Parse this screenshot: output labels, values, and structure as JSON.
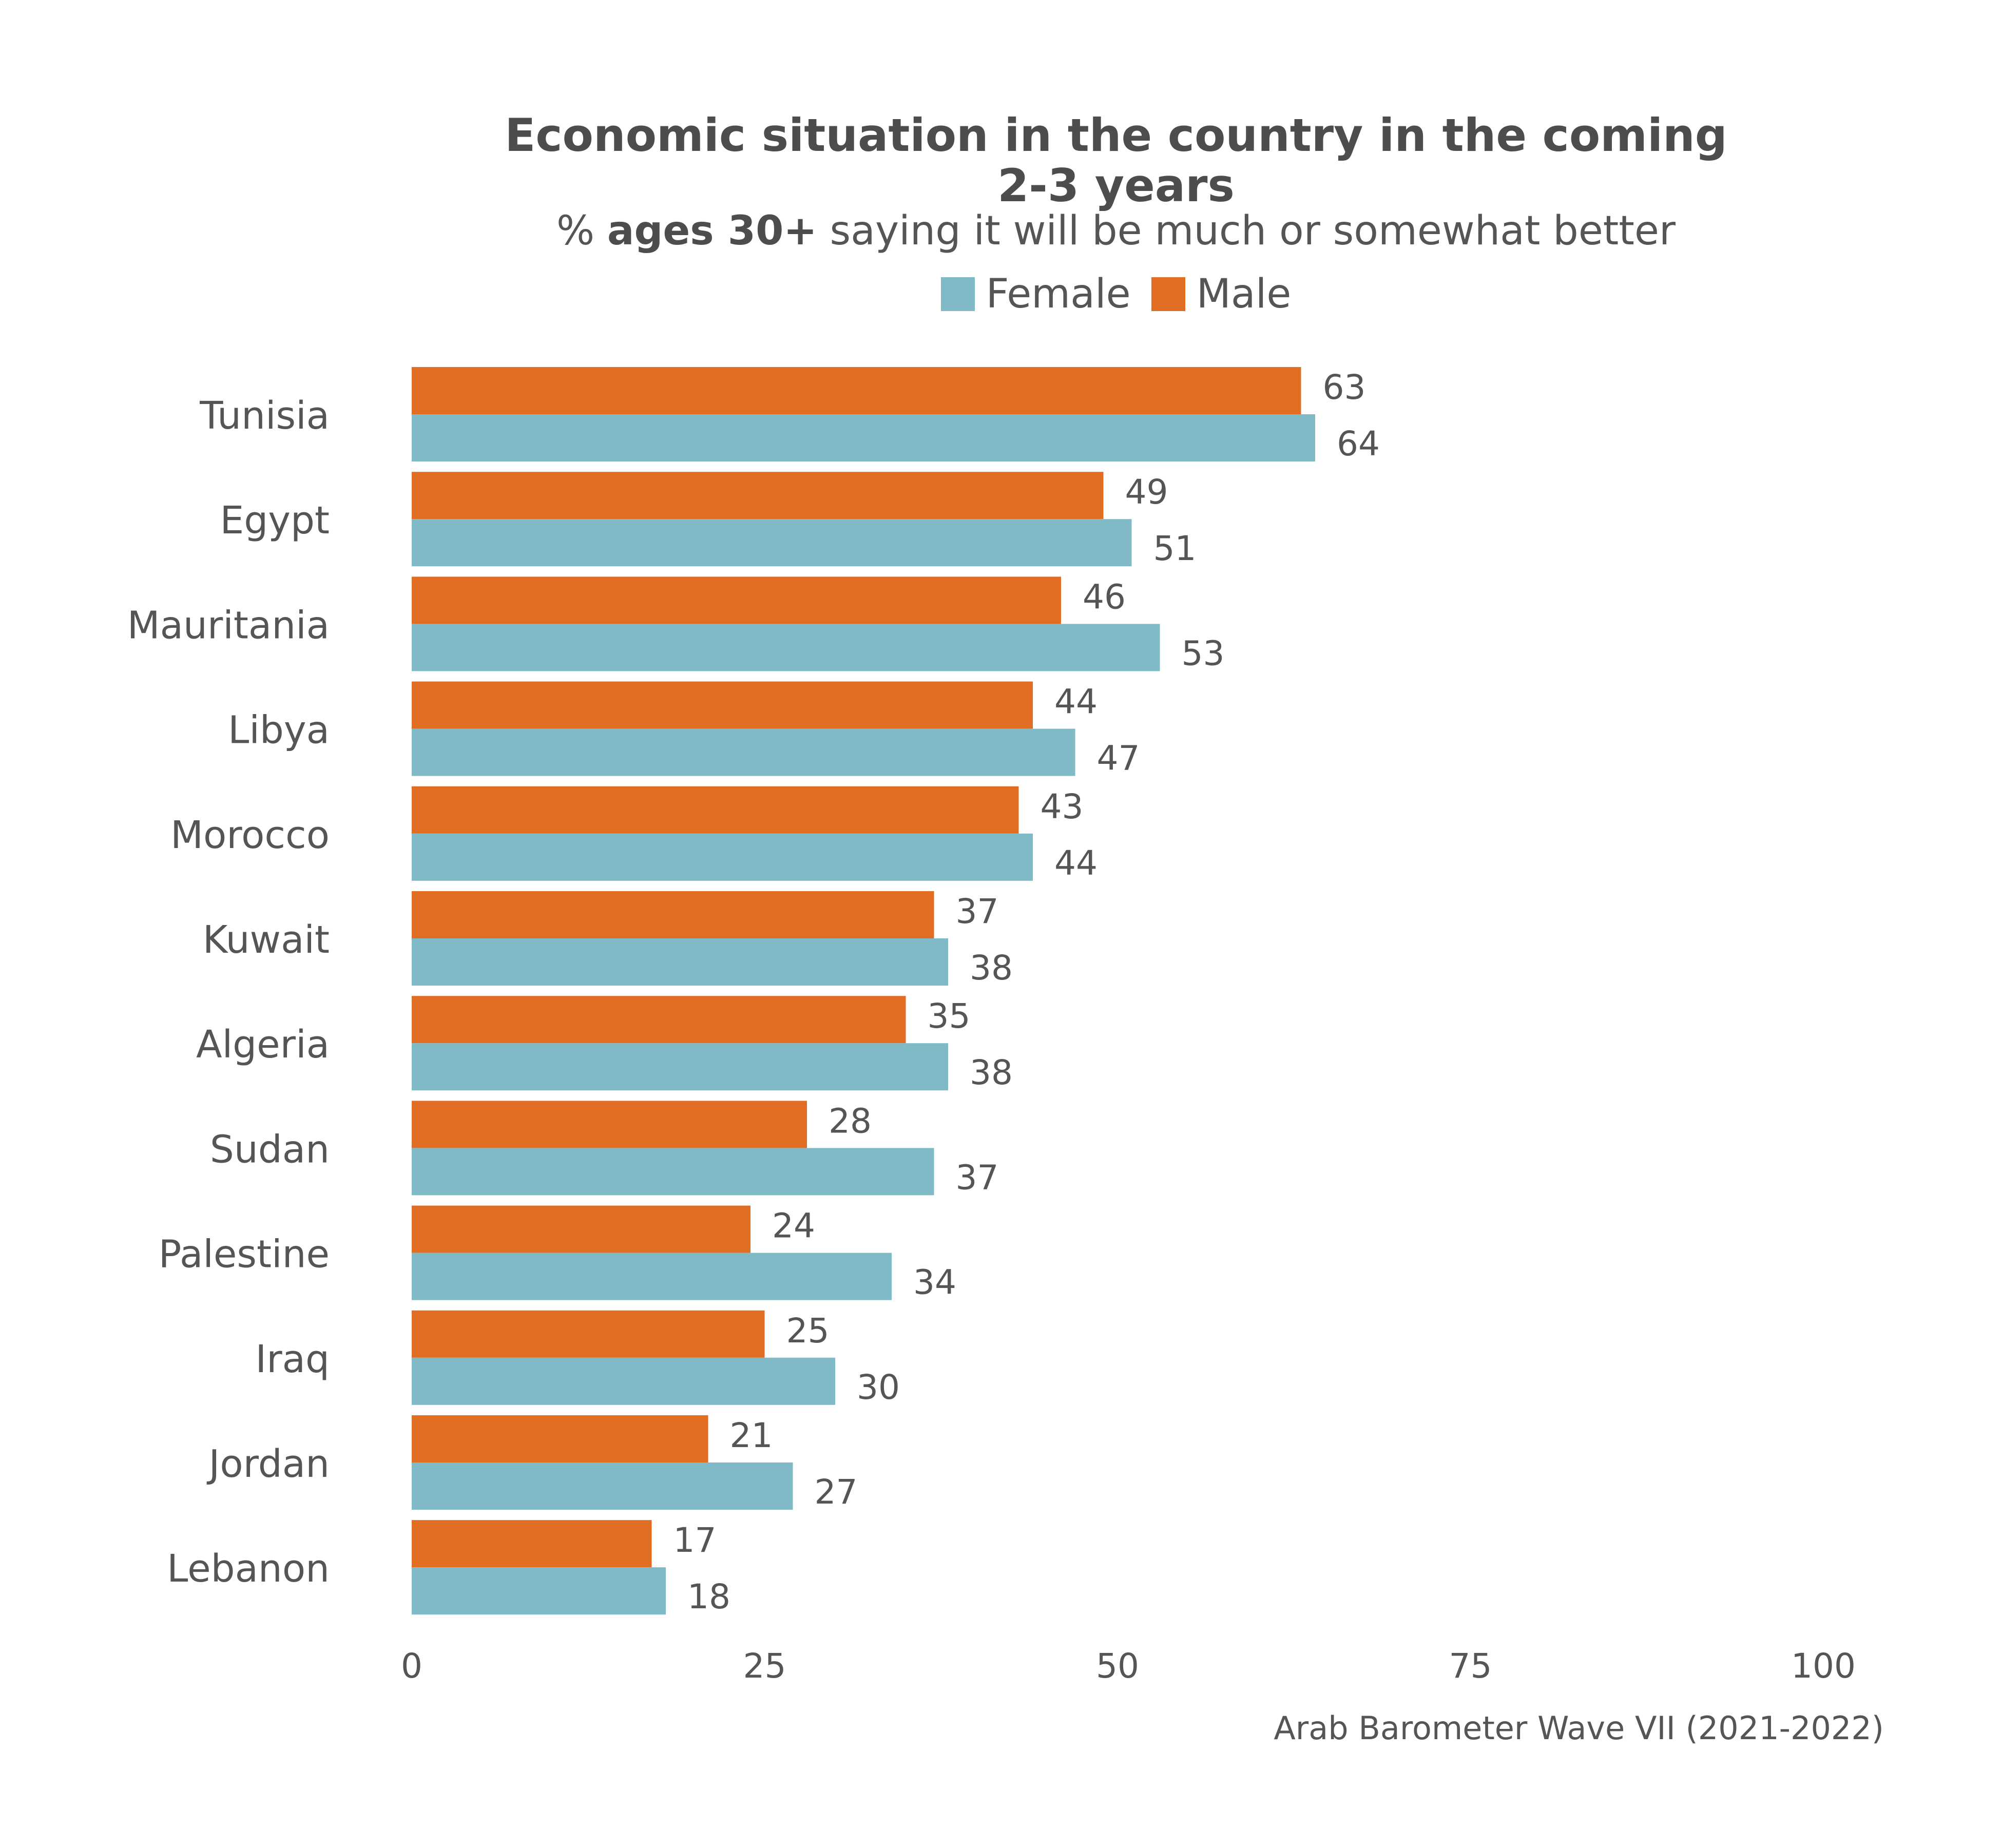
{
  "chart_data": {
    "type": "bar",
    "orientation": "horizontal",
    "title": "Economic situation in the country in the coming 2-3 years",
    "subtitle_prefix": "% ",
    "subtitle_bold": "ages 30+",
    "subtitle_suffix": " saying it will be much or somewhat better",
    "categories": [
      "Tunisia",
      "Egypt",
      "Mauritania",
      "Libya",
      "Morocco",
      "Kuwait",
      "Algeria",
      "Sudan",
      "Palestine",
      "Iraq",
      "Jordan",
      "Lebanon"
    ],
    "series": [
      {
        "name": "Male",
        "color": "#e06d22",
        "values": [
          63,
          49,
          46,
          44,
          43,
          37,
          35,
          28,
          24,
          25,
          21,
          17
        ]
      },
      {
        "name": "Female",
        "color": "#7fbac6",
        "values": [
          64,
          51,
          53,
          47,
          44,
          38,
          38,
          37,
          34,
          30,
          27,
          18
        ]
      }
    ],
    "legend": [
      {
        "name": "Female",
        "color": "#7fbac6"
      },
      {
        "name": "Male",
        "color": "#e06d22"
      }
    ],
    "legend_position": "top",
    "xlim": [
      0,
      100
    ],
    "xticks": [
      "0",
      "25",
      "50",
      "75",
      "100"
    ],
    "grid": false,
    "source": "Arab Barometer Wave VII (2021-2022)"
  }
}
